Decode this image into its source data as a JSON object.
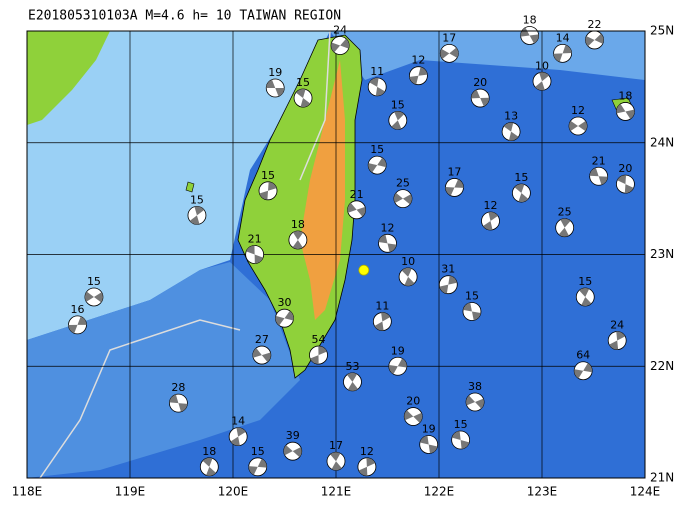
{
  "map": {
    "title": "E201805310103A M=4.6 h= 10 TAIWAN REGION",
    "xlim": [
      118,
      124
    ],
    "ylim": [
      21,
      25
    ],
    "xticks": [
      {
        "value": 118,
        "label": "118E"
      },
      {
        "value": 119,
        "label": "119E"
      },
      {
        "value": 120,
        "label": "120E"
      },
      {
        "value": 121,
        "label": "121E"
      },
      {
        "value": 122,
        "label": "122E"
      },
      {
        "value": 123,
        "label": "123E"
      },
      {
        "value": 124,
        "label": "124E"
      }
    ],
    "yticks": [
      {
        "value": 21,
        "label": "21N"
      },
      {
        "value": 22,
        "label": "22N"
      },
      {
        "value": 23,
        "label": "23N"
      },
      {
        "value": 24,
        "label": "24N"
      },
      {
        "value": 25,
        "label": "25N"
      }
    ],
    "main_event": {
      "lon": 121.27,
      "lat": 22.86
    },
    "events": [
      {
        "lon": 120.41,
        "lat": 24.49,
        "depth": 19
      },
      {
        "lon": 120.68,
        "lat": 24.4,
        "depth": 15
      },
      {
        "lon": 119.65,
        "lat": 23.35,
        "depth": 15
      },
      {
        "lon": 118.49,
        "lat": 22.37,
        "depth": 16
      },
      {
        "lon": 118.65,
        "lat": 22.62,
        "depth": 15
      },
      {
        "lon": 119.47,
        "lat": 21.67,
        "depth": 28
      },
      {
        "lon": 119.77,
        "lat": 21.1,
        "depth": 18
      },
      {
        "lon": 120.05,
        "lat": 21.37,
        "depth": 14
      },
      {
        "lon": 120.24,
        "lat": 21.1,
        "depth": 15
      },
      {
        "lon": 120.58,
        "lat": 21.24,
        "depth": 39
      },
      {
        "lon": 122.32,
        "lat": 22.49,
        "depth": 15
      },
      {
        "lon": 123.42,
        "lat": 22.62,
        "depth": 15
      },
      {
        "lon": 123.73,
        "lat": 22.23,
        "depth": 24
      },
      {
        "lon": 123.4,
        "lat": 21.96,
        "depth": 64
      },
      {
        "lon": 122.35,
        "lat": 21.68,
        "depth": 38
      },
      {
        "lon": 122.21,
        "lat": 21.34,
        "depth": 15
      },
      {
        "lon": 121.16,
        "lat": 21.86,
        "depth": 53
      },
      {
        "lon": 120.83,
        "lat": 22.1,
        "depth": 54
      },
      {
        "lon": 120.5,
        "lat": 22.43,
        "depth": 30
      },
      {
        "lon": 120.28,
        "lat": 22.1,
        "depth": 27
      },
      {
        "lon": 120.21,
        "lat": 23.0,
        "depth": 21
      },
      {
        "lon": 120.63,
        "lat": 23.13,
        "depth": 18
      },
      {
        "lon": 120.34,
        "lat": 23.57,
        "depth": 15
      },
      {
        "lon": 121.04,
        "lat": 24.87,
        "depth": 24
      },
      {
        "lon": 123.81,
        "lat": 24.28,
        "depth": 18
      },
      {
        "lon": 123.81,
        "lat": 23.63,
        "depth": 20
      },
      {
        "lon": 123.22,
        "lat": 23.24,
        "depth": 25
      },
      {
        "lon": 122.09,
        "lat": 22.73,
        "depth": 31
      },
      {
        "lon": 123.51,
        "lat": 24.92,
        "depth": 22
      },
      {
        "lon": 122.88,
        "lat": 24.96,
        "depth": 18
      },
      {
        "lon": 121.4,
        "lat": 24.5,
        "depth": 11
      },
      {
        "lon": 121.6,
        "lat": 24.2,
        "depth": 15
      },
      {
        "lon": 121.8,
        "lat": 24.6,
        "depth": 12
      },
      {
        "lon": 122.1,
        "lat": 24.8,
        "depth": 17
      },
      {
        "lon": 122.4,
        "lat": 24.4,
        "depth": 20
      },
      {
        "lon": 122.7,
        "lat": 24.1,
        "depth": 13
      },
      {
        "lon": 123.0,
        "lat": 24.55,
        "depth": 10
      },
      {
        "lon": 123.2,
        "lat": 24.8,
        "depth": 14
      },
      {
        "lon": 123.35,
        "lat": 24.15,
        "depth": 12
      },
      {
        "lon": 123.55,
        "lat": 23.7,
        "depth": 21
      },
      {
        "lon": 122.8,
        "lat": 23.55,
        "depth": 15
      },
      {
        "lon": 122.5,
        "lat": 23.3,
        "depth": 12
      },
      {
        "lon": 122.15,
        "lat": 23.6,
        "depth": 17
      },
      {
        "lon": 121.65,
        "lat": 23.5,
        "depth": 25
      },
      {
        "lon": 121.5,
        "lat": 23.1,
        "depth": 12
      },
      {
        "lon": 121.7,
        "lat": 22.8,
        "depth": 10
      },
      {
        "lon": 121.45,
        "lat": 22.4,
        "depth": 11
      },
      {
        "lon": 121.6,
        "lat": 22.0,
        "depth": 19
      },
      {
        "lon": 121.75,
        "lat": 21.55,
        "depth": 20
      },
      {
        "lon": 121.9,
        "lat": 21.3,
        "depth": 19
      },
      {
        "lon": 121.0,
        "lat": 21.15,
        "depth": 17
      },
      {
        "lon": 121.3,
        "lat": 21.1,
        "depth": 12
      },
      {
        "lon": 121.4,
        "lat": 23.8,
        "depth": 15
      },
      {
        "lon": 121.2,
        "lat": 23.4,
        "depth": 21
      }
    ]
  }
}
